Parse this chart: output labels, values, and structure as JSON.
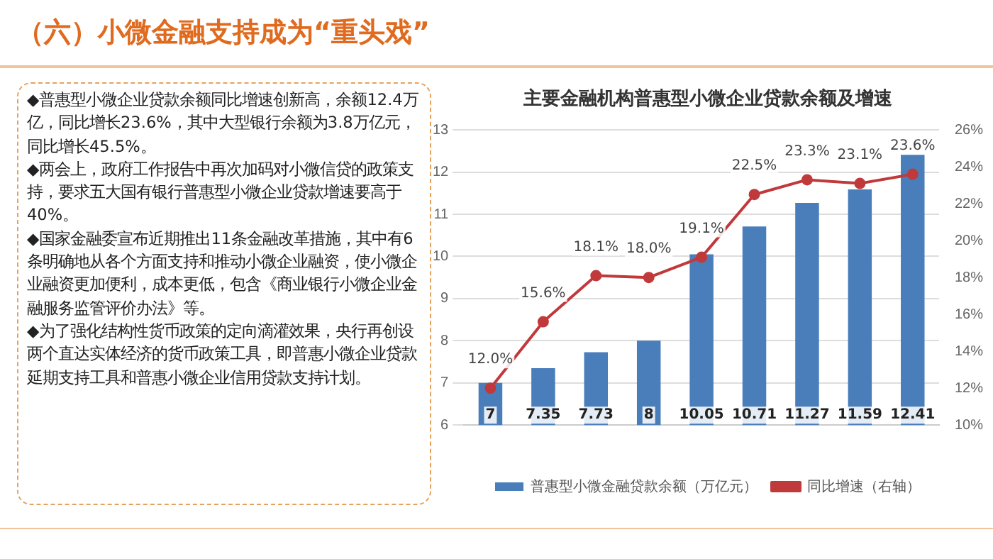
{
  "chart_data": {
    "type": "bar",
    "title": "主要金融机构普惠型小微企业贷款余额及增速",
    "annotations": [
      "（六）小微金融支持成为“重头戏”",
      "◆普惠型小微企业贷款余额同比增速创新高，余额12.4万亿，同比增长23.6%，其中大型银行余额为3.8万亿元，同比增长45.5%。",
      "◆两会上，政府工作报告中再次加码对小微信贷的政策支持，要求五大国有银行普惠型小微企业贷款增速要高于40%。",
      "◆国家金融委宣布近期推出11条金融改革措施，其中有6条明确地从各个方面支持和推动小微企业融资，使小微企业融资更加便利，成本更低，包含《商业银行小微企业金融服务监管评价办法》等。",
      "◆为了强化结构性货币政策的定向滴灌效果，央行再创设两个直达实体经济的货币政策工具，即普惠小微企业贷款延期支持工具和普惠小微企业信用贷款支持计划。"
    ],
    "categories": [
      null,
      null,
      null,
      null,
      null,
      null,
      null,
      null,
      null
    ],
    "series": [
      {
        "name": "普惠型小微金融贷款余额（万亿元）",
        "color": "#4a7ebb",
        "values": [
          7,
          7.35,
          7.73,
          8,
          10.05,
          10.71,
          11.27,
          11.59,
          12.41
        ],
        "value_labels": [
          "7",
          "7.35",
          "7.73",
          "8",
          "10.05",
          "10.71",
          "11.27",
          "11.59",
          "12.41"
        ]
      },
      {
        "name": "同比增速（右轴）",
        "type": "line",
        "axis": "y2",
        "color": "#c0393b",
        "values": [
          12.0,
          15.6,
          18.1,
          18.0,
          19.1,
          22.5,
          23.3,
          23.1,
          23.6
        ],
        "value_labels": [
          "12.0%",
          "15.6%",
          "18.1%",
          "18.0%",
          "19.1%",
          "22.5%",
          "23.3%",
          "23.1%",
          "23.6%"
        ]
      }
    ],
    "ylim": [
      6,
      13
    ],
    "yticks": [
      6,
      7,
      8,
      9,
      10,
      11,
      12,
      13
    ],
    "y2lim": [
      10,
      26
    ],
    "y2ticks": [
      {
        "value": 10,
        "label": "10%"
      },
      {
        "value": 12,
        "label": "12%"
      },
      {
        "value": 14,
        "label": "14%"
      },
      {
        "value": 16,
        "label": "16%"
      },
      {
        "value": 18,
        "label": "18%"
      },
      {
        "value": 20,
        "label": "20%"
      },
      {
        "value": 22,
        "label": "22%"
      },
      {
        "value": 24,
        "label": "24%"
      },
      {
        "value": 26,
        "label": "26%"
      }
    ],
    "grid": "y",
    "legend": "bottom",
    "marker": "circle",
    "line_style": "solid"
  }
}
